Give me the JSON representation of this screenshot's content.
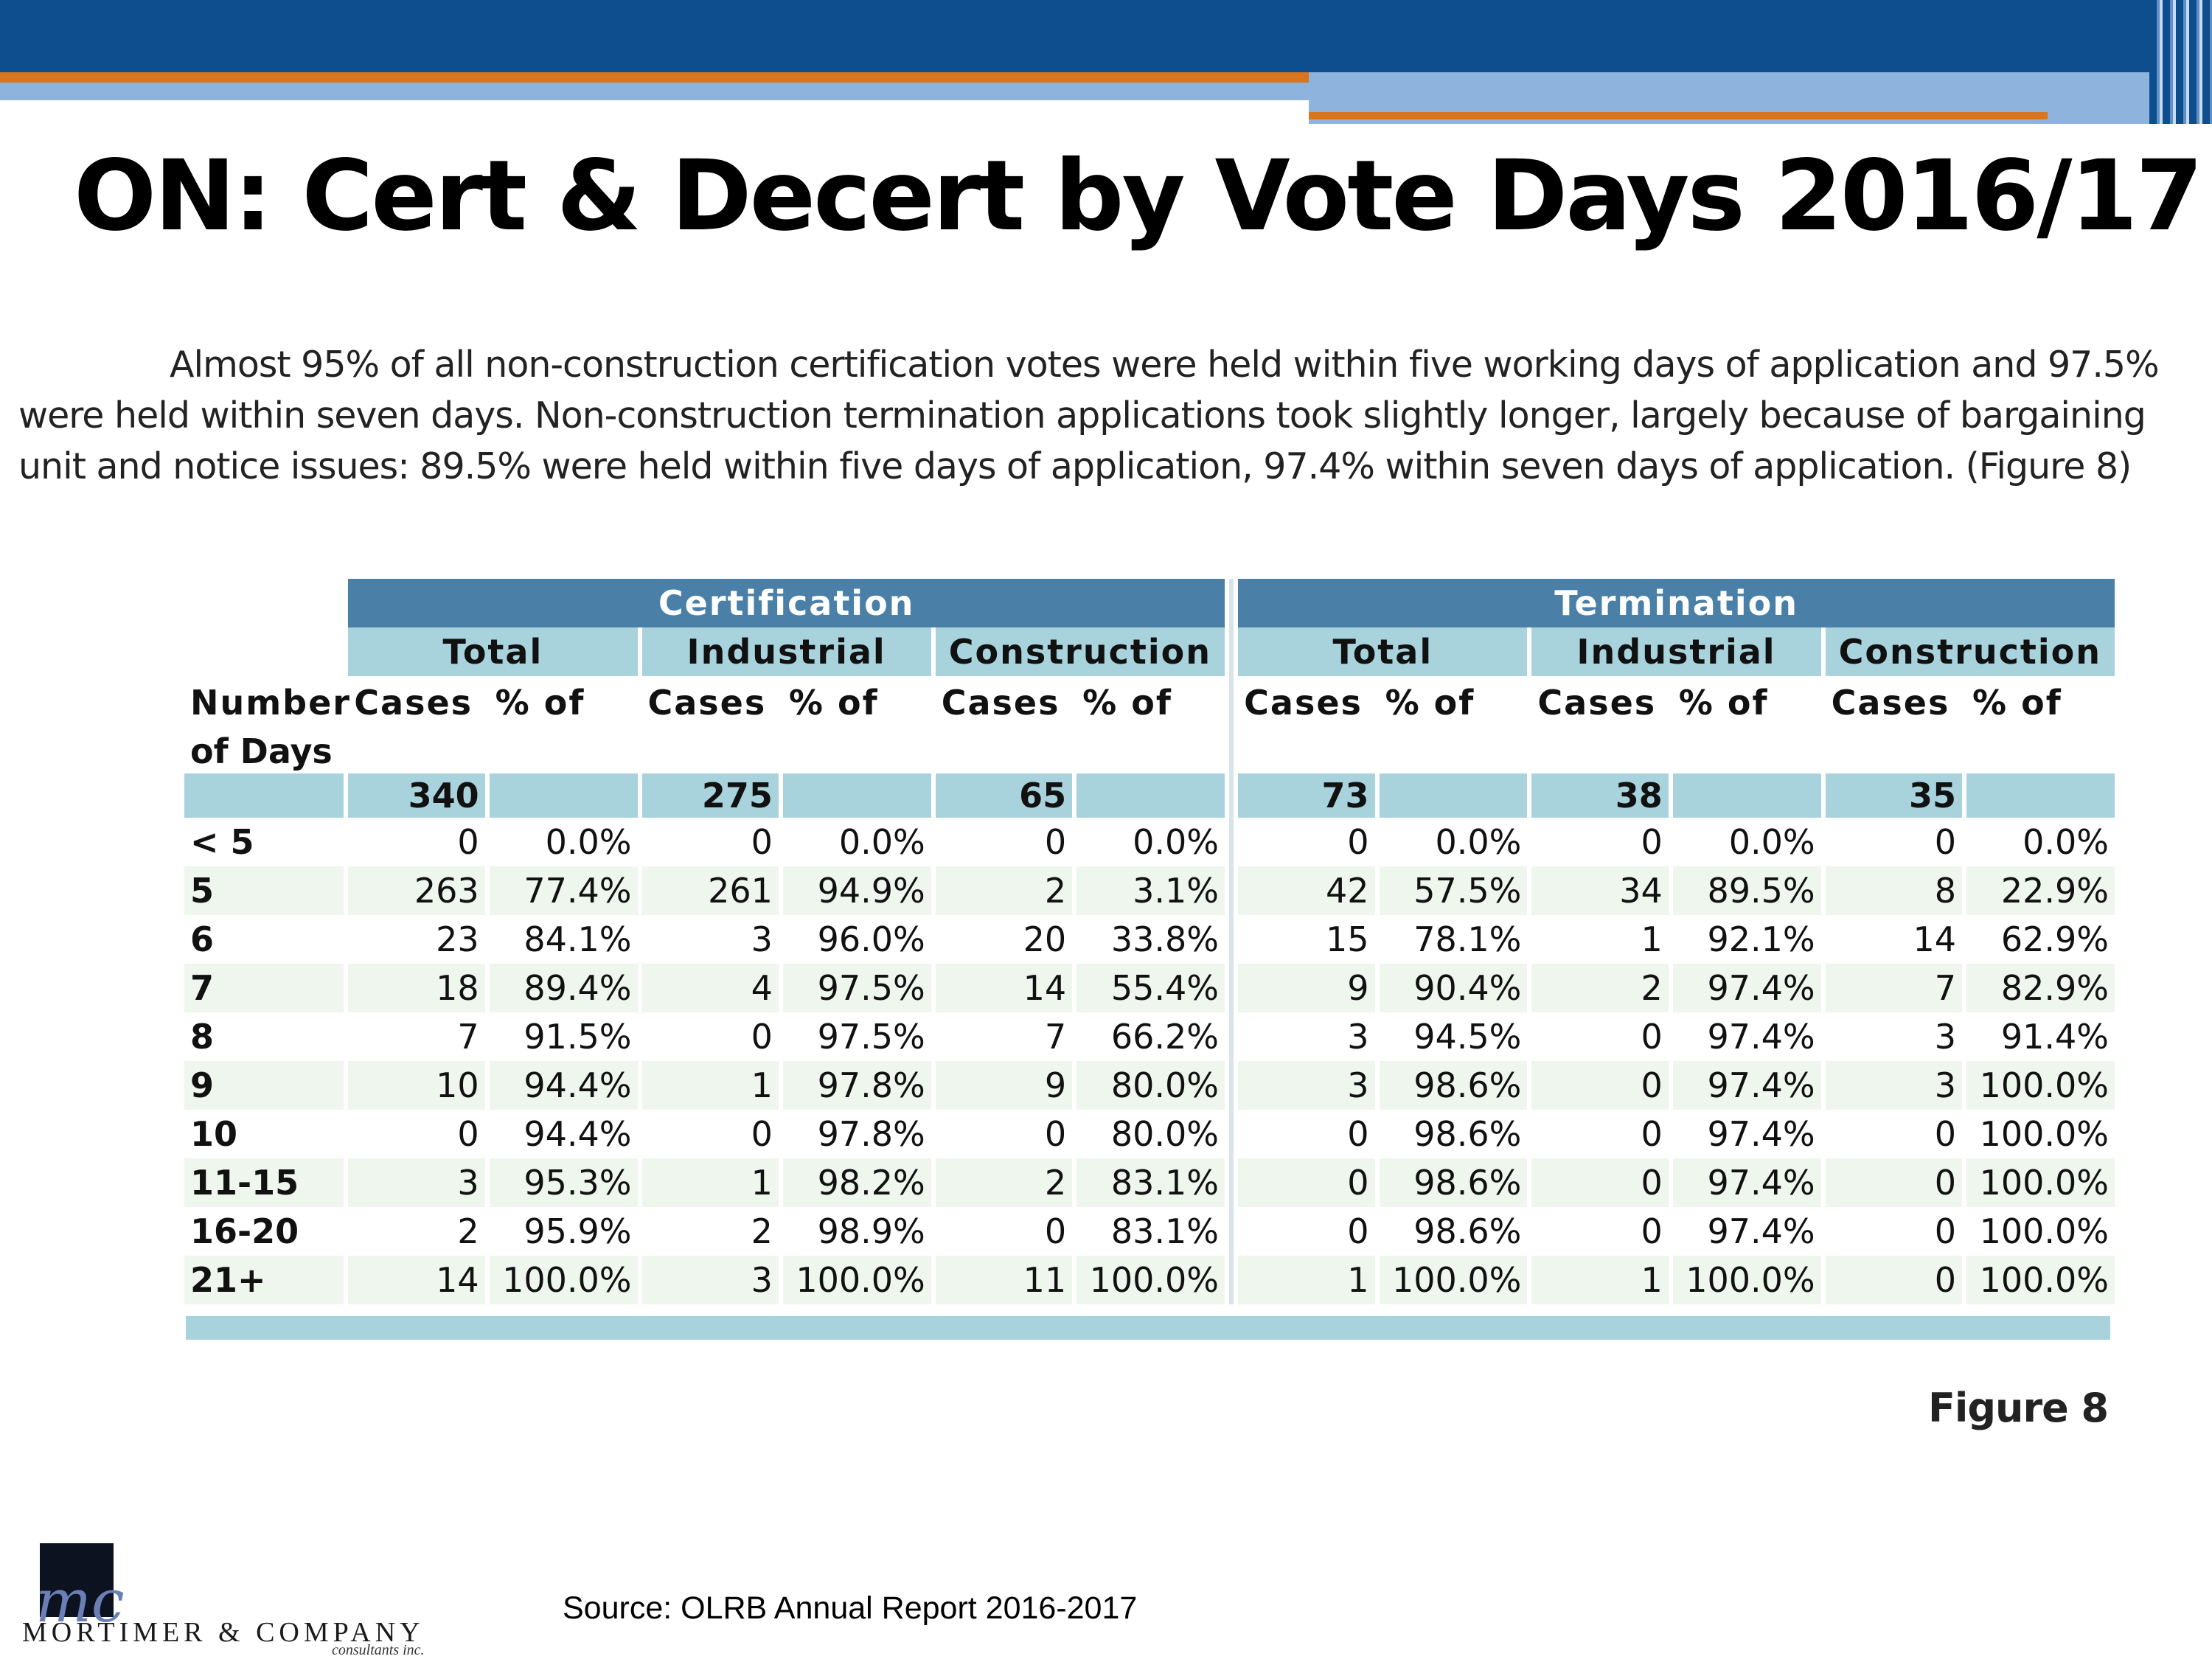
{
  "title": "ON: Cert & Decert by Vote Days 2016/17",
  "paragraph": "Almost 95% of all non-construction certification votes were held within five working days of application and 97.5% were held within seven days. Non-construction termination applications took slightly longer, largely because of bargaining unit and notice issues: 89.5% were held within five days of application, 97.4% within seven days of application. (Figure 8)",
  "table": {
    "groups": [
      "Certification",
      "Termination"
    ],
    "subgroups": [
      "Total",
      "Industrial",
      "Construction",
      "Total",
      "Industrial",
      "Construction"
    ],
    "row_header_1": "Number",
    "row_header_2": "of Days",
    "col_cases": "Cases",
    "col_pct": "% of",
    "totals": [
      "340",
      "275",
      "65",
      "73",
      "38",
      "35"
    ],
    "rows": [
      {
        "label": "< 5",
        "cells": [
          "0",
          "0.0%",
          "0",
          "0.0%",
          "0",
          "0.0%",
          "0",
          "0.0%",
          "0",
          "0.0%",
          "0",
          "0.0%"
        ]
      },
      {
        "label": "5",
        "cells": [
          "263",
          "77.4%",
          "261",
          "94.9%",
          "2",
          "3.1%",
          "42",
          "57.5%",
          "34",
          "89.5%",
          "8",
          "22.9%"
        ]
      },
      {
        "label": "6",
        "cells": [
          "23",
          "84.1%",
          "3",
          "96.0%",
          "20",
          "33.8%",
          "15",
          "78.1%",
          "1",
          "92.1%",
          "14",
          "62.9%"
        ]
      },
      {
        "label": "7",
        "cells": [
          "18",
          "89.4%",
          "4",
          "97.5%",
          "14",
          "55.4%",
          "9",
          "90.4%",
          "2",
          "97.4%",
          "7",
          "82.9%"
        ]
      },
      {
        "label": "8",
        "cells": [
          "7",
          "91.5%",
          "0",
          "97.5%",
          "7",
          "66.2%",
          "3",
          "94.5%",
          "0",
          "97.4%",
          "3",
          "91.4%"
        ]
      },
      {
        "label": "9",
        "cells": [
          "10",
          "94.4%",
          "1",
          "97.8%",
          "9",
          "80.0%",
          "3",
          "98.6%",
          "0",
          "97.4%",
          "3",
          "100.0%"
        ]
      },
      {
        "label": "10",
        "cells": [
          "0",
          "94.4%",
          "0",
          "97.8%",
          "0",
          "80.0%",
          "0",
          "98.6%",
          "0",
          "97.4%",
          "0",
          "100.0%"
        ]
      },
      {
        "label": "11-15",
        "cells": [
          "3",
          "95.3%",
          "1",
          "98.2%",
          "2",
          "83.1%",
          "0",
          "98.6%",
          "0",
          "97.4%",
          "0",
          "100.0%"
        ]
      },
      {
        "label": "16-20",
        "cells": [
          "2",
          "95.9%",
          "2",
          "98.9%",
          "0",
          "83.1%",
          "0",
          "98.6%",
          "0",
          "97.4%",
          "0",
          "100.0%"
        ]
      },
      {
        "label": "21+",
        "cells": [
          "14",
          "100.0%",
          "3",
          "100.0%",
          "11",
          "100.0%",
          "1",
          "100.0%",
          "1",
          "100.0%",
          "0",
          "100.0%"
        ]
      }
    ]
  },
  "figure_label": "Figure 8",
  "source": "Source: OLRB Annual Report 2016-2017",
  "logo": {
    "monogram": "mc",
    "name": "MORTIMER & COMPANY",
    "tagline": "consultants inc."
  },
  "colors": {
    "header_blue": "#0e4e8e",
    "accent_orange": "#d9751e",
    "light_blue": "#8eb4dd",
    "table_group": "#4a7fa7",
    "table_sub": "#a8d3dd"
  }
}
